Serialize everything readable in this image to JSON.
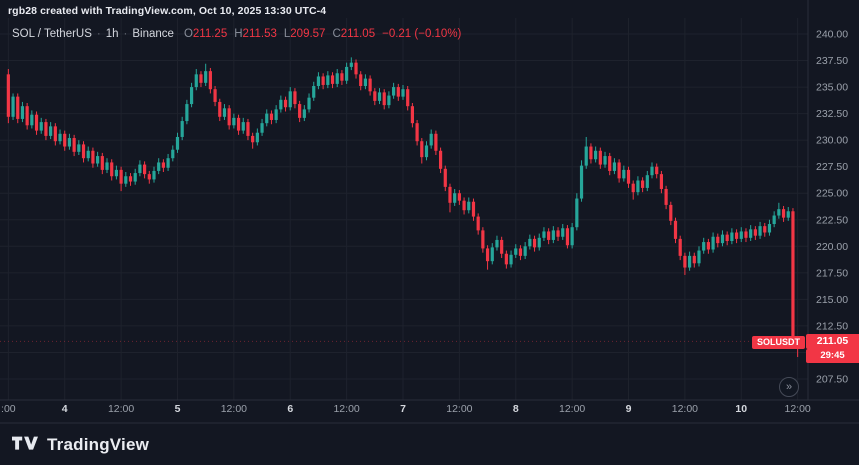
{
  "caption": "rgb28 created with TradingView.com, Oct 10, 2025 13:30 UTC-4",
  "legend": {
    "symbol": "SOL / TetherUS",
    "separator": "·",
    "interval": "1h",
    "exchange": "Binance",
    "ohlc": {
      "o_label": "O",
      "o": "211.25",
      "h_label": "H",
      "h": "211.53",
      "l_label": "L",
      "l": "209.57",
      "c_label": "C",
      "c": "211.05",
      "change": "−0.21 (−0.10%)"
    }
  },
  "price_label": {
    "symbol": "SOLUSDT",
    "price": "211.05",
    "countdown": "29:45"
  },
  "realtime_button_glyph": "»",
  "footer": {
    "brand": "TradingView"
  },
  "colors": {
    "bg": "#131722",
    "up": "#26a69a",
    "down": "#f23645",
    "grid": "#1e222d",
    "border": "#2a2e39",
    "axis_text": "#9ba1ab",
    "axis_text_major": "#d5d8de"
  },
  "chart_data": {
    "type": "candlestick",
    "symbol": "SOLUSDT",
    "title": "SOL / TetherUS · 1h · Binance",
    "interval": "1h",
    "exchange": "Binance",
    "current_bar": {
      "open": 211.25,
      "high": 211.53,
      "low": 209.57,
      "close": 211.05,
      "change": -0.21,
      "change_pct": -0.1
    },
    "last_price": 211.05,
    "countdown": "29:45",
    "y_axis": {
      "min": 206.5,
      "max": 240.5,
      "ticks": [
        240,
        237.5,
        235,
        232.5,
        230,
        227.5,
        225,
        222.5,
        220,
        217.5,
        215,
        212.5,
        210,
        207.5
      ]
    },
    "x_axis": {
      "ticks": [
        {
          "i": 0,
          "label": ":00",
          "major": false
        },
        {
          "i": 12,
          "label": "4",
          "major": true
        },
        {
          "i": 24,
          "label": "12:00",
          "major": false
        },
        {
          "i": 36,
          "label": "5",
          "major": true
        },
        {
          "i": 48,
          "label": "12:00",
          "major": false
        },
        {
          "i": 60,
          "label": "6",
          "major": true
        },
        {
          "i": 72,
          "label": "12:00",
          "major": false
        },
        {
          "i": 84,
          "label": "7",
          "major": true
        },
        {
          "i": 96,
          "label": "12:00",
          "major": false
        },
        {
          "i": 108,
          "label": "8",
          "major": true
        },
        {
          "i": 120,
          "label": "12:00",
          "major": false
        },
        {
          "i": 132,
          "label": "9",
          "major": true
        },
        {
          "i": 144,
          "label": "12:00",
          "major": false
        },
        {
          "i": 156,
          "label": "10",
          "major": true
        },
        {
          "i": 168,
          "label": "12:00",
          "major": false
        }
      ]
    },
    "candles": [
      [
        236.2,
        236.7,
        231.6,
        232.2
      ],
      [
        232.2,
        234.4,
        231.9,
        234.1
      ],
      [
        234.1,
        234.4,
        231.6,
        232.0
      ],
      [
        232.0,
        233.6,
        231.7,
        233.2
      ],
      [
        233.2,
        233.5,
        231.0,
        231.4
      ],
      [
        231.4,
        232.8,
        231.1,
        232.4
      ],
      [
        232.4,
        232.7,
        230.5,
        230.9
      ],
      [
        230.9,
        232.1,
        230.6,
        231.7
      ],
      [
        231.7,
        232.0,
        230.0,
        230.4
      ],
      [
        230.4,
        231.7,
        230.1,
        231.3
      ],
      [
        231.3,
        231.6,
        229.5,
        229.9
      ],
      [
        229.9,
        231.0,
        229.6,
        230.6
      ],
      [
        230.6,
        230.9,
        229.0,
        229.4
      ],
      [
        229.4,
        230.6,
        229.1,
        230.2
      ],
      [
        230.2,
        230.5,
        228.5,
        228.9
      ],
      [
        228.9,
        230.0,
        228.6,
        229.6
      ],
      [
        229.6,
        229.9,
        227.9,
        228.3
      ],
      [
        228.3,
        229.4,
        228.0,
        229.0
      ],
      [
        229.0,
        229.3,
        227.4,
        227.8
      ],
      [
        227.8,
        228.9,
        227.5,
        228.5
      ],
      [
        228.5,
        228.8,
        226.8,
        227.2
      ],
      [
        227.2,
        228.3,
        226.9,
        227.9
      ],
      [
        227.9,
        228.2,
        226.2,
        226.6
      ],
      [
        226.6,
        227.6,
        226.3,
        227.2
      ],
      [
        227.2,
        227.5,
        225.2,
        225.9
      ],
      [
        225.9,
        227.0,
        225.6,
        226.6
      ],
      [
        226.6,
        226.9,
        225.7,
        226.1
      ],
      [
        226.1,
        227.3,
        225.8,
        226.9
      ],
      [
        226.9,
        228.1,
        226.6,
        227.7
      ],
      [
        227.7,
        228.0,
        226.4,
        226.8
      ],
      [
        226.8,
        227.1,
        225.9,
        226.3
      ],
      [
        226.3,
        227.5,
        226.0,
        227.1
      ],
      [
        227.1,
        228.3,
        226.8,
        227.9
      ],
      [
        227.9,
        228.2,
        227.0,
        227.4
      ],
      [
        227.4,
        228.7,
        227.1,
        228.3
      ],
      [
        228.3,
        229.5,
        228.0,
        229.1
      ],
      [
        229.1,
        230.7,
        228.8,
        230.3
      ],
      [
        230.3,
        232.2,
        230.0,
        231.8
      ],
      [
        231.8,
        233.8,
        231.5,
        233.4
      ],
      [
        233.4,
        235.4,
        233.1,
        235.0
      ],
      [
        235.0,
        236.7,
        234.7,
        236.2
      ],
      [
        236.2,
        236.5,
        235.0,
        235.4
      ],
      [
        235.4,
        237.2,
        235.1,
        236.5
      ],
      [
        236.5,
        236.8,
        234.4,
        234.8
      ],
      [
        234.8,
        235.1,
        233.2,
        233.6
      ],
      [
        233.6,
        233.9,
        231.8,
        232.2
      ],
      [
        232.2,
        233.4,
        231.9,
        233.0
      ],
      [
        233.0,
        233.3,
        231.0,
        231.4
      ],
      [
        231.4,
        232.5,
        231.1,
        232.1
      ],
      [
        232.1,
        232.4,
        230.5,
        230.9
      ],
      [
        230.9,
        232.1,
        230.6,
        231.7
      ],
      [
        231.7,
        232.0,
        230.0,
        230.4
      ],
      [
        230.4,
        230.7,
        229.2,
        229.8
      ],
      [
        229.8,
        231.1,
        229.5,
        230.7
      ],
      [
        230.7,
        232.0,
        230.4,
        231.6
      ],
      [
        231.6,
        232.9,
        231.3,
        232.5
      ],
      [
        232.5,
        232.8,
        231.5,
        231.9
      ],
      [
        231.9,
        233.3,
        231.6,
        232.9
      ],
      [
        232.9,
        234.2,
        232.6,
        233.8
      ],
      [
        233.8,
        234.1,
        232.7,
        233.1
      ],
      [
        233.1,
        235.0,
        232.8,
        234.6
      ],
      [
        234.6,
        234.9,
        233.0,
        233.4
      ],
      [
        233.4,
        233.7,
        231.7,
        232.1
      ],
      [
        232.1,
        233.3,
        231.8,
        232.9
      ],
      [
        232.9,
        234.4,
        232.6,
        234.0
      ],
      [
        234.0,
        235.5,
        233.7,
        235.1
      ],
      [
        235.1,
        236.4,
        234.8,
        236.0
      ],
      [
        236.0,
        236.3,
        234.8,
        235.2
      ],
      [
        235.2,
        236.5,
        234.9,
        236.1
      ],
      [
        236.1,
        236.4,
        234.9,
        235.3
      ],
      [
        235.3,
        236.7,
        235.0,
        236.3
      ],
      [
        236.3,
        236.6,
        235.2,
        235.6
      ],
      [
        235.6,
        237.3,
        235.3,
        236.9
      ],
      [
        236.9,
        237.8,
        236.6,
        237.3
      ],
      [
        237.3,
        237.6,
        235.8,
        236.2
      ],
      [
        236.2,
        236.5,
        234.7,
        235.1
      ],
      [
        235.1,
        236.2,
        234.8,
        235.8
      ],
      [
        235.8,
        236.1,
        234.2,
        234.6
      ],
      [
        234.6,
        234.9,
        233.3,
        233.7
      ],
      [
        233.7,
        234.9,
        233.4,
        234.5
      ],
      [
        234.5,
        234.8,
        232.9,
        233.3
      ],
      [
        233.3,
        234.6,
        233.0,
        234.2
      ],
      [
        234.2,
        235.4,
        233.9,
        235.0
      ],
      [
        235.0,
        235.3,
        233.7,
        234.1
      ],
      [
        234.1,
        235.2,
        233.8,
        234.8
      ],
      [
        234.8,
        235.1,
        232.8,
        233.2
      ],
      [
        233.2,
        233.5,
        231.2,
        231.6
      ],
      [
        231.6,
        231.9,
        229.5,
        229.9
      ],
      [
        229.9,
        230.2,
        227.8,
        228.4
      ],
      [
        228.4,
        229.9,
        228.1,
        229.5
      ],
      [
        229.5,
        231.0,
        229.2,
        230.6
      ],
      [
        230.6,
        230.9,
        228.6,
        229.0
      ],
      [
        229.0,
        229.3,
        226.9,
        227.3
      ],
      [
        227.3,
        227.6,
        225.2,
        225.6
      ],
      [
        225.6,
        225.9,
        223.2,
        224.1
      ],
      [
        224.1,
        225.4,
        223.8,
        225.0
      ],
      [
        225.0,
        225.3,
        223.9,
        224.3
      ],
      [
        224.3,
        224.6,
        223.0,
        223.4
      ],
      [
        223.4,
        224.6,
        223.1,
        224.2
      ],
      [
        224.2,
        224.5,
        222.4,
        222.8
      ],
      [
        222.8,
        223.1,
        221.1,
        221.5
      ],
      [
        221.5,
        221.8,
        219.4,
        219.8
      ],
      [
        219.8,
        220.1,
        217.8,
        218.6
      ],
      [
        218.6,
        220.3,
        218.3,
        219.9
      ],
      [
        219.9,
        221.0,
        219.6,
        220.6
      ],
      [
        220.6,
        220.9,
        218.9,
        219.3
      ],
      [
        219.3,
        219.6,
        217.9,
        218.3
      ],
      [
        218.3,
        219.6,
        218.0,
        219.2
      ],
      [
        219.2,
        220.2,
        218.9,
        219.8
      ],
      [
        219.8,
        220.1,
        218.7,
        219.1
      ],
      [
        219.1,
        220.4,
        218.8,
        220.0
      ],
      [
        220.0,
        221.1,
        219.7,
        220.7
      ],
      [
        220.7,
        221.0,
        219.5,
        219.9
      ],
      [
        219.9,
        221.2,
        219.6,
        220.8
      ],
      [
        220.8,
        221.8,
        220.5,
        221.4
      ],
      [
        221.4,
        221.7,
        220.2,
        220.6
      ],
      [
        220.6,
        221.9,
        220.3,
        221.5
      ],
      [
        221.5,
        221.8,
        220.5,
        220.9
      ],
      [
        220.9,
        222.1,
        220.6,
        221.7
      ],
      [
        221.7,
        222.0,
        219.8,
        220.1
      ],
      [
        220.1,
        222.2,
        219.8,
        221.8
      ],
      [
        221.8,
        225.0,
        221.5,
        224.5
      ],
      [
        224.5,
        228.1,
        224.2,
        227.6
      ],
      [
        227.6,
        230.3,
        227.3,
        229.4
      ],
      [
        229.4,
        229.7,
        227.8,
        228.2
      ],
      [
        228.2,
        229.4,
        227.9,
        229.0
      ],
      [
        229.0,
        229.3,
        227.3,
        227.7
      ],
      [
        227.7,
        228.9,
        227.4,
        228.5
      ],
      [
        228.5,
        228.8,
        226.7,
        227.1
      ],
      [
        227.1,
        228.3,
        226.8,
        227.9
      ],
      [
        227.9,
        228.2,
        226.0,
        226.4
      ],
      [
        226.4,
        227.6,
        226.1,
        227.2
      ],
      [
        227.2,
        227.5,
        225.5,
        225.9
      ],
      [
        225.9,
        226.2,
        224.4,
        225.1
      ],
      [
        225.1,
        226.6,
        224.8,
        226.2
      ],
      [
        226.2,
        226.5,
        225.1,
        225.5
      ],
      [
        225.5,
        227.1,
        225.2,
        226.7
      ],
      [
        226.7,
        227.9,
        226.4,
        227.5
      ],
      [
        227.5,
        227.8,
        226.4,
        226.8
      ],
      [
        226.8,
        227.1,
        225.0,
        225.4
      ],
      [
        225.4,
        225.7,
        223.5,
        223.9
      ],
      [
        223.9,
        224.2,
        222.0,
        222.4
      ],
      [
        222.4,
        222.7,
        220.3,
        220.7
      ],
      [
        220.7,
        221.0,
        218.7,
        219.1
      ],
      [
        219.1,
        219.4,
        217.3,
        218.0
      ],
      [
        218.0,
        219.5,
        217.7,
        219.1
      ],
      [
        219.1,
        219.4,
        218.0,
        218.4
      ],
      [
        218.4,
        220.0,
        218.1,
        219.6
      ],
      [
        219.6,
        220.8,
        219.3,
        220.4
      ],
      [
        220.4,
        220.7,
        219.3,
        219.7
      ],
      [
        219.7,
        221.3,
        219.4,
        220.9
      ],
      [
        220.9,
        221.2,
        219.9,
        220.3
      ],
      [
        220.3,
        221.5,
        220.0,
        221.1
      ],
      [
        221.1,
        221.4,
        220.1,
        220.5
      ],
      [
        220.5,
        221.7,
        220.2,
        221.3
      ],
      [
        221.3,
        221.6,
        220.3,
        220.7
      ],
      [
        220.7,
        221.8,
        220.4,
        221.4
      ],
      [
        221.4,
        221.7,
        220.4,
        220.8
      ],
      [
        220.8,
        222.0,
        220.5,
        221.6
      ],
      [
        221.6,
        221.9,
        220.6,
        221.0
      ],
      [
        221.0,
        222.3,
        220.7,
        221.9
      ],
      [
        221.9,
        222.2,
        220.9,
        221.3
      ],
      [
        221.3,
        222.5,
        221.0,
        222.1
      ],
      [
        222.1,
        223.3,
        221.8,
        222.9
      ],
      [
        222.9,
        224.1,
        222.6,
        223.5
      ],
      [
        223.5,
        223.8,
        222.3,
        222.7
      ],
      [
        222.7,
        223.7,
        222.4,
        223.3
      ],
      [
        223.3,
        223.6,
        210.9,
        211.4
      ],
      [
        211.25,
        211.53,
        209.57,
        211.05
      ]
    ]
  }
}
